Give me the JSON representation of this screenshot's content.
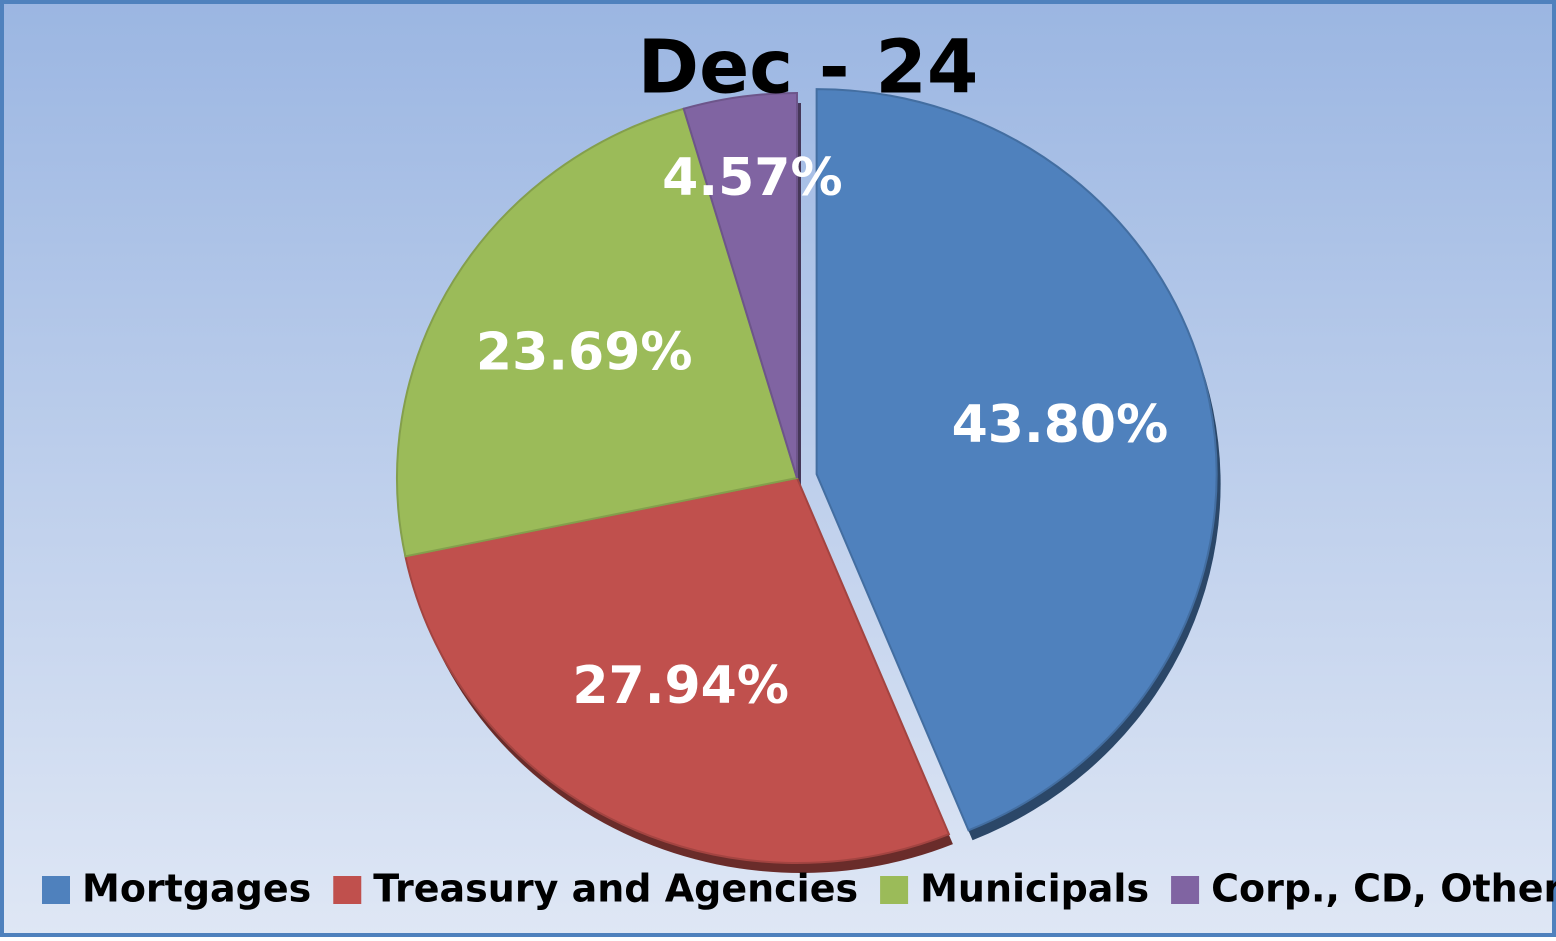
{
  "chart_data": {
    "type": "pie",
    "title": "Dec - 24",
    "categories": [
      "Mortgages",
      "Treasury and Agencies",
      "Municipals",
      "Corp., CD, Other"
    ],
    "values": [
      43.8,
      27.94,
      23.69,
      4.57
    ],
    "value_labels": [
      "43.80%",
      "27.94%",
      "23.69%",
      "4.57%"
    ],
    "colors": [
      "#4f81bd",
      "#c0504d",
      "#9bbb59",
      "#8064a2"
    ],
    "legend": "bottom"
  }
}
